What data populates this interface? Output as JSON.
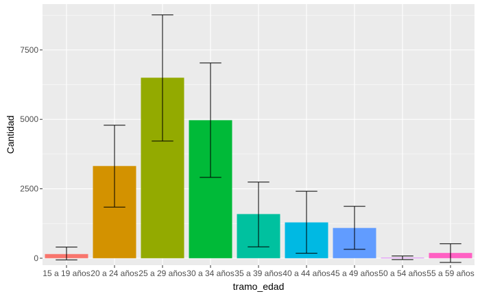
{
  "chart_data": {
    "type": "bar",
    "title": "",
    "xlabel": "tramo_edad",
    "ylabel": "Cantidad",
    "categories": [
      "15 a 19 años",
      "20 a 24 años",
      "25 a 29 años",
      "30 a 34 años",
      "35 a 39 años",
      "40 a 44 años",
      "45 a 49 años",
      "50 a 54 años",
      "55 a 59 años"
    ],
    "values": [
      150,
      3320,
      6500,
      4970,
      1590,
      1290,
      1090,
      20,
      190
    ],
    "error_low": [
      -60,
      1840,
      4220,
      2910,
      410,
      180,
      320,
      -50,
      -150
    ],
    "error_high": [
      400,
      4790,
      8760,
      7030,
      2740,
      2410,
      1870,
      80,
      520
    ],
    "colors": [
      "#F8766D",
      "#D39200",
      "#93AA00",
      "#00BA38",
      "#00C19F",
      "#00B9E3",
      "#619CFF",
      "#DB72FB",
      "#FF61C3"
    ],
    "ylim": [
      -250,
      9150
    ],
    "yticks": [
      0,
      2500,
      5000,
      7500
    ],
    "ytick_labels": [
      "0",
      "2500",
      "5000",
      "7500"
    ],
    "grid": true,
    "legend": "none",
    "panel_color": "#EBEBEB",
    "grid_color": "#FFFFFF"
  }
}
